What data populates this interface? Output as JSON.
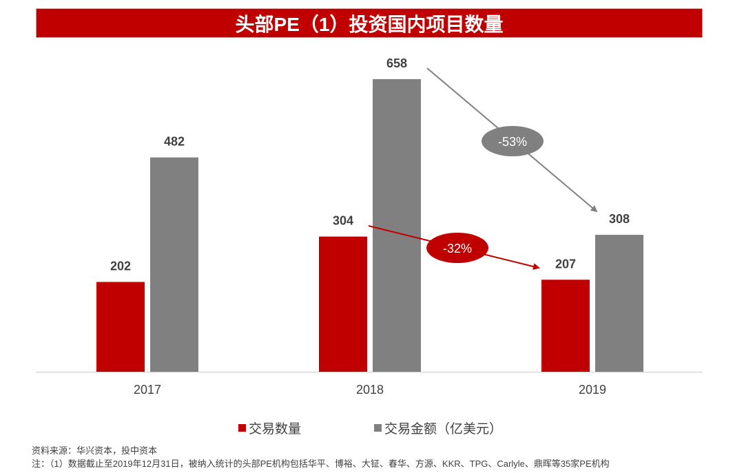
{
  "title": "头部PE（1）投资国内项目数量",
  "colors": {
    "primary": "#c00000",
    "secondary": "#808080",
    "text": "#404040",
    "axis": "#d9d9d9"
  },
  "chart_data": {
    "type": "bar",
    "title": "头部PE（1）投资国内项目数量",
    "categories": [
      "2017",
      "2018",
      "2019"
    ],
    "series": [
      {
        "name": "交易数量",
        "color": "#c00000",
        "values": [
          202,
          304,
          207
        ]
      },
      {
        "name": "交易金额（亿美元）",
        "color": "#808080",
        "values": [
          482,
          658,
          308
        ]
      }
    ],
    "ylim": [
      0,
      700
    ],
    "grid": false,
    "legend": "bottom",
    "annotations": [
      {
        "label": "-53%",
        "series": "交易金额（亿美元）",
        "from": "2018",
        "to": "2019",
        "color": "#808080"
      },
      {
        "label": "-32%",
        "series": "交易数量",
        "from": "2018",
        "to": "2019",
        "color": "#c00000"
      }
    ]
  },
  "legend": {
    "items": [
      {
        "label": "交易数量",
        "color": "#c00000"
      },
      {
        "label": "交易金额（亿美元）",
        "color": "#808080"
      }
    ]
  },
  "footer": {
    "source": "资料来源：华兴资本，投中资本",
    "note": "注：（1）数据截止至2019年12月31日，被纳入统计的头部PE机构包括华平、博裕、大钲、春华、方源、KKR、TPG、Carlyle、鼎晖等35家PE机构"
  }
}
